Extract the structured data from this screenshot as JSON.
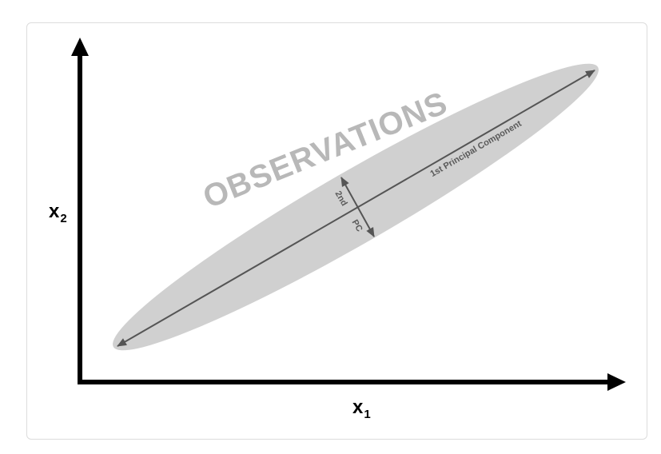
{
  "diagram": {
    "x_axis_label": "x",
    "x_axis_subscript": "1",
    "y_axis_label": "x",
    "y_axis_subscript": "2",
    "watermark_text": "OBSERVATIONS",
    "first_pc_label": "1st Principal Component",
    "second_pc_label_line1": "2nd",
    "second_pc_label_line2": "PC",
    "colors": {
      "axis": "#000000",
      "ellipse_fill": "#d0d0d0",
      "pc_line": "#555555",
      "watermark": "#b8b8b8",
      "pc_text": "#5a5a5a",
      "frame_border": "#dcdcdc"
    }
  }
}
